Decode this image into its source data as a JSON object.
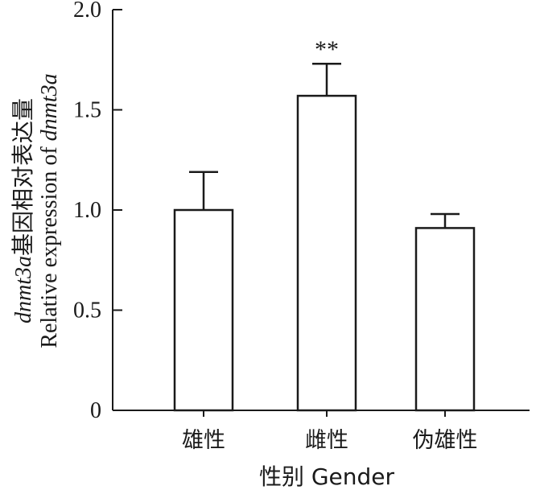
{
  "chart_data": {
    "type": "bar",
    "categories": [
      "雄性",
      "雌性",
      "伪雄性"
    ],
    "values": [
      1.0,
      1.57,
      0.91
    ],
    "error_upper": [
      1.19,
      1.73,
      0.98
    ],
    "annotations": [
      "",
      "**",
      ""
    ],
    "xlabel": "性别 Gender",
    "ylabel_line1": {
      "italic": "dnmt3a",
      "text": "基因相对表达量"
    },
    "ylabel_line2": {
      "text": "Relative expression of ",
      "italic": "dnmt3a"
    },
    "ylim": [
      0,
      2.0
    ],
    "yticks": [
      "0",
      "0.5",
      "1.0",
      "1.5",
      "2.0"
    ],
    "grid": false
  }
}
